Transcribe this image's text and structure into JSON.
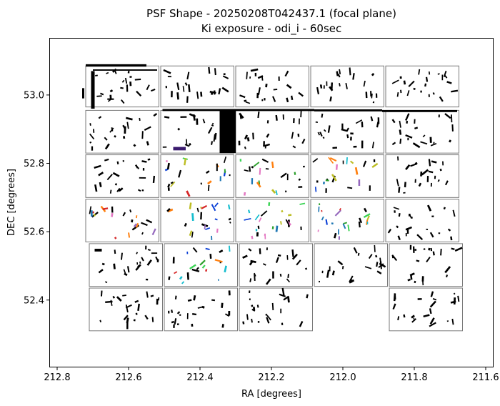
{
  "chart_data": {
    "type": "scatter",
    "title": [
      "PSF Shape - 20250208T042437.1 (focal plane)",
      "Ki exposure - odi_i - 60sec"
    ],
    "xlabel": "RA [degrees]",
    "ylabel": "DEC [degrees]",
    "xlim": [
      212.82,
      211.58
    ],
    "ylim": [
      52.205,
      53.165
    ],
    "x_ticks": [
      {
        "value": 212.8,
        "label": "212.8"
      },
      {
        "value": 212.6,
        "label": "212.6"
      },
      {
        "value": 212.4,
        "label": "212.4"
      },
      {
        "value": 212.2,
        "label": "212.2"
      },
      {
        "value": 212.0,
        "label": "212.0"
      },
      {
        "value": 211.8,
        "label": "211.8"
      },
      {
        "value": 211.6,
        "label": "211.6"
      }
    ],
    "y_ticks": [
      {
        "value": 53.0,
        "label": "53.0"
      },
      {
        "value": 52.8,
        "label": "52.8"
      },
      {
        "value": 52.6,
        "label": "52.6"
      },
      {
        "value": 52.4,
        "label": "52.4"
      }
    ],
    "grid": false,
    "ccds": [
      {
        "ra": [
          212.72,
          212.515
        ],
        "dec": [
          53.085,
          52.965
        ]
      },
      {
        "ra": [
          212.51,
          212.305
        ],
        "dec": [
          53.085,
          52.965
        ]
      },
      {
        "ra": [
          212.3,
          212.095
        ],
        "dec": [
          53.085,
          52.965
        ]
      },
      {
        "ra": [
          212.09,
          211.885
        ],
        "dec": [
          53.085,
          52.965
        ]
      },
      {
        "ra": [
          211.88,
          211.675
        ],
        "dec": [
          53.085,
          52.965
        ]
      },
      {
        "ra": [
          212.72,
          212.515
        ],
        "dec": [
          52.955,
          52.83
        ]
      },
      {
        "ra": [
          212.51,
          212.305
        ],
        "dec": [
          52.955,
          52.83
        ]
      },
      {
        "ra": [
          212.3,
          212.095
        ],
        "dec": [
          52.955,
          52.83
        ]
      },
      {
        "ra": [
          212.09,
          211.885
        ],
        "dec": [
          52.955,
          52.83
        ]
      },
      {
        "ra": [
          211.88,
          211.675
        ],
        "dec": [
          52.955,
          52.83
        ]
      },
      {
        "ra": [
          212.72,
          212.515
        ],
        "dec": [
          52.825,
          52.7
        ]
      },
      {
        "ra": [
          212.51,
          212.305
        ],
        "dec": [
          52.825,
          52.7
        ]
      },
      {
        "ra": [
          212.3,
          212.095
        ],
        "dec": [
          52.825,
          52.7
        ]
      },
      {
        "ra": [
          212.09,
          211.885
        ],
        "dec": [
          52.825,
          52.7
        ]
      },
      {
        "ra": [
          211.88,
          211.675
        ],
        "dec": [
          52.825,
          52.7
        ]
      },
      {
        "ra": [
          212.72,
          212.515
        ],
        "dec": [
          52.695,
          52.57
        ]
      },
      {
        "ra": [
          212.51,
          212.305
        ],
        "dec": [
          52.695,
          52.57
        ]
      },
      {
        "ra": [
          212.3,
          212.095
        ],
        "dec": [
          52.695,
          52.57
        ]
      },
      {
        "ra": [
          212.09,
          211.885
        ],
        "dec": [
          52.695,
          52.57
        ]
      },
      {
        "ra": [
          211.88,
          211.675
        ],
        "dec": [
          52.695,
          52.57
        ]
      },
      {
        "ra": [
          212.71,
          212.505
        ],
        "dec": [
          52.565,
          52.44
        ]
      },
      {
        "ra": [
          212.5,
          212.295
        ],
        "dec": [
          52.565,
          52.44
        ]
      },
      {
        "ra": [
          212.29,
          212.085
        ],
        "dec": [
          52.565,
          52.44
        ]
      },
      {
        "ra": [
          212.08,
          211.875
        ],
        "dec": [
          52.565,
          52.44
        ]
      },
      {
        "ra": [
          211.87,
          211.665
        ],
        "dec": [
          52.565,
          52.44
        ]
      },
      {
        "ra": [
          212.71,
          212.505
        ],
        "dec": [
          52.435,
          52.31
        ]
      },
      {
        "ra": [
          212.5,
          212.295
        ],
        "dec": [
          52.435,
          52.31
        ]
      },
      {
        "ra": [
          212.29,
          212.085
        ],
        "dec": [
          52.435,
          52.31
        ]
      },
      {
        "ra": [
          211.87,
          211.665
        ],
        "dec": [
          52.435,
          52.31
        ]
      }
    ],
    "heavy_features": [
      {
        "ra": [
          212.345,
          212.3
        ],
        "dec": [
          52.955,
          52.83
        ],
        "color": "#000000"
      },
      {
        "ra": [
          212.475,
          212.44
        ],
        "dec": [
          52.848,
          52.838
        ],
        "color": "#3a1a6e"
      },
      {
        "ra": [
          212.72,
          212.55
        ],
        "dec": [
          53.09,
          53.083
        ],
        "color": "#000000"
      },
      {
        "ra": [
          212.7,
          212.52
        ],
        "dec": [
          53.075,
          53.071
        ],
        "color": "#000000"
      },
      {
        "ra": [
          212.505,
          212.08
        ],
        "dec": [
          52.959,
          52.953
        ],
        "color": "#000000"
      },
      {
        "ra": [
          212.08,
          211.89
        ],
        "dec": [
          52.958,
          52.952
        ],
        "color": "#000000"
      },
      {
        "ra": [
          211.89,
          211.68
        ],
        "dec": [
          52.956,
          52.95
        ],
        "color": "#000000"
      },
      {
        "ra": [
          212.705,
          212.695
        ],
        "dec": [
          53.07,
          52.96
        ],
        "color": "#000000"
      },
      {
        "ra": [
          212.73,
          212.724
        ],
        "dec": [
          53.02,
          52.99
        ],
        "color": "#000000"
      },
      {
        "ra": [
          212.695,
          212.675
        ],
        "dec": [
          52.55,
          52.542
        ],
        "color": "#000000"
      }
    ],
    "vector_colors": [
      "#000000",
      "#000000",
      "#000000",
      "#000000",
      "#000000",
      "#000000",
      "#d62728",
      "#2ca02c",
      "#1f77b4",
      "#9467bd",
      "#ff7f0e",
      "#17becf",
      "#bcbd22",
      "#e377c2",
      "#0a3fd6",
      "#39d353"
    ],
    "colored_ccd_indices": [
      11,
      12,
      13,
      15,
      16,
      17,
      18,
      21
    ],
    "n_vectors_per_ccd": 22,
    "vector_scale_deg": [
      0.004,
      0.022
    ]
  }
}
